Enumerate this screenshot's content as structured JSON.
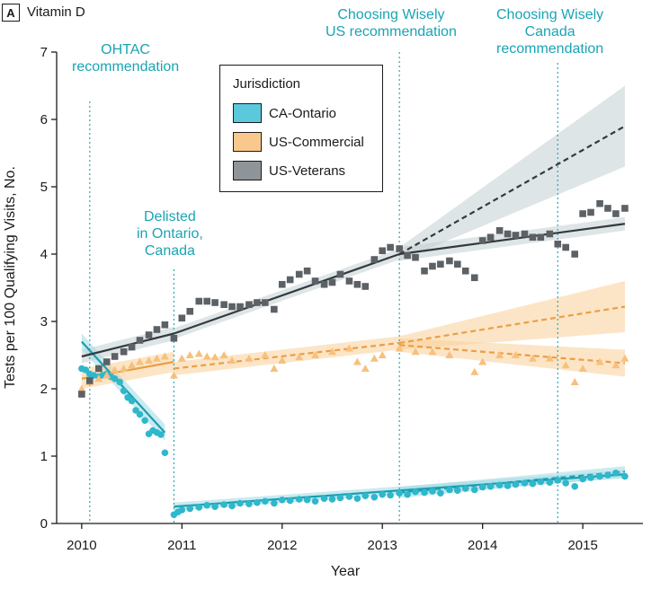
{
  "panel": {
    "letter": "A",
    "title": "Vitamin D"
  },
  "annotations": [
    {
      "id": "ohtac",
      "lines": [
        "OHTAC",
        "recommendation"
      ]
    },
    {
      "id": "delisted",
      "lines": [
        "Delisted",
        "in Ontario,",
        "Canada"
      ]
    },
    {
      "id": "cw-us",
      "lines": [
        "Choosing Wisely",
        "US recommendation"
      ]
    },
    {
      "id": "cw-canada",
      "lines": [
        "Choosing Wisely",
        "Canada",
        "recommendation"
      ]
    }
  ],
  "legend": {
    "title": "Jurisdiction",
    "items": [
      {
        "label": "CA-Ontario",
        "color": "#5bc8dc"
      },
      {
        "label": "US-Commercial",
        "color": "#f9c88c"
      },
      {
        "label": "US-Veterans",
        "color": "#8f9499"
      }
    ]
  },
  "chart_data": {
    "type": "scatter",
    "title": "Vitamin D",
    "xlabel": "Year",
    "ylabel": "Tests per 100 Qualifying Visits, No.",
    "xlim": [
      2009.75,
      2015.6
    ],
    "ylim": [
      0,
      7
    ],
    "xticks": [
      2010,
      2011,
      2012,
      2013,
      2014,
      2015
    ],
    "yticks": [
      0,
      1,
      2,
      3,
      4,
      5,
      6,
      7
    ],
    "vlines": [
      {
        "x": 2010.08,
        "label": "OHTAC recommendation"
      },
      {
        "x": 2010.92,
        "label": "Delisted in Ontario, Canada"
      },
      {
        "x": 2013.17,
        "label": "Choosing Wisely US recommendation"
      },
      {
        "x": 2014.75,
        "label": "Choosing Wisely Canada recommendation"
      }
    ],
    "series": [
      {
        "name": "CA-Ontario",
        "marker": "circle",
        "color": "#2fb7cc",
        "line_color": "#1a9fb0",
        "band_color": "#9fd9e4",
        "points": [
          [
            2010.0,
            2.3
          ],
          [
            2010.04,
            2.28
          ],
          [
            2010.08,
            2.22
          ],
          [
            2010.12,
            2.2
          ],
          [
            2010.17,
            2.18
          ],
          [
            2010.21,
            2.2
          ],
          [
            2010.25,
            2.22
          ],
          [
            2010.29,
            2.18
          ],
          [
            2010.33,
            2.15
          ],
          [
            2010.38,
            2.1
          ],
          [
            2010.42,
            1.97
          ],
          [
            2010.46,
            1.87
          ],
          [
            2010.5,
            1.82
          ],
          [
            2010.54,
            1.68
          ],
          [
            2010.58,
            1.62
          ],
          [
            2010.63,
            1.53
          ],
          [
            2010.67,
            1.33
          ],
          [
            2010.71,
            1.38
          ],
          [
            2010.75,
            1.35
          ],
          [
            2010.79,
            1.32
          ],
          [
            2010.83,
            1.05
          ],
          [
            2010.92,
            0.13
          ],
          [
            2010.96,
            0.17
          ],
          [
            2011.0,
            0.2
          ],
          [
            2011.08,
            0.22
          ],
          [
            2011.17,
            0.24
          ],
          [
            2011.25,
            0.27
          ],
          [
            2011.33,
            0.25
          ],
          [
            2011.42,
            0.28
          ],
          [
            2011.5,
            0.26
          ],
          [
            2011.58,
            0.3
          ],
          [
            2011.67,
            0.29
          ],
          [
            2011.75,
            0.31
          ],
          [
            2011.83,
            0.33
          ],
          [
            2011.92,
            0.3
          ],
          [
            2012.0,
            0.35
          ],
          [
            2012.08,
            0.34
          ],
          [
            2012.17,
            0.36
          ],
          [
            2012.25,
            0.35
          ],
          [
            2012.33,
            0.33
          ],
          [
            2012.42,
            0.37
          ],
          [
            2012.5,
            0.36
          ],
          [
            2012.58,
            0.38
          ],
          [
            2012.67,
            0.4
          ],
          [
            2012.75,
            0.37
          ],
          [
            2012.83,
            0.41
          ],
          [
            2012.92,
            0.39
          ],
          [
            2013.0,
            0.43
          ],
          [
            2013.08,
            0.42
          ],
          [
            2013.17,
            0.45
          ],
          [
            2013.25,
            0.43
          ],
          [
            2013.33,
            0.47
          ],
          [
            2013.42,
            0.46
          ],
          [
            2013.5,
            0.48
          ],
          [
            2013.58,
            0.45
          ],
          [
            2013.67,
            0.5
          ],
          [
            2013.75,
            0.49
          ],
          [
            2013.83,
            0.52
          ],
          [
            2013.92,
            0.5
          ],
          [
            2014.0,
            0.54
          ],
          [
            2014.08,
            0.55
          ],
          [
            2014.17,
            0.57
          ],
          [
            2014.25,
            0.56
          ],
          [
            2014.33,
            0.58
          ],
          [
            2014.42,
            0.6
          ],
          [
            2014.5,
            0.59
          ],
          [
            2014.58,
            0.62
          ],
          [
            2014.67,
            0.61
          ],
          [
            2014.75,
            0.64
          ],
          [
            2014.83,
            0.6
          ],
          [
            2014.92,
            0.55
          ],
          [
            2015.0,
            0.66
          ],
          [
            2015.08,
            0.68
          ],
          [
            2015.17,
            0.7
          ],
          [
            2015.25,
            0.72
          ],
          [
            2015.33,
            0.75
          ],
          [
            2015.42,
            0.7
          ]
        ],
        "fit": [
          {
            "x": [
              2010.0,
              2010.83
            ],
            "y": [
              2.7,
              1.35
            ],
            "ci": 0.12,
            "style": "solid"
          },
          {
            "x": [
              2010.92,
              2015.42
            ],
            "y": [
              0.25,
              0.73
            ],
            "ci": 0.06,
            "style": "solid"
          },
          {
            "x": [
              2013.17,
              2015.42
            ],
            "y": [
              0.46,
              0.77
            ],
            "ci": 0.08,
            "style": "dashed"
          }
        ]
      },
      {
        "name": "US-Commercial",
        "marker": "triangle",
        "color": "#f7c07c",
        "line_color": "#eb9e45",
        "band_color": "#f9cf98",
        "points": [
          [
            2010.0,
            2.0
          ],
          [
            2010.08,
            2.1
          ],
          [
            2010.17,
            2.15
          ],
          [
            2010.25,
            2.2
          ],
          [
            2010.33,
            2.28
          ],
          [
            2010.42,
            2.3
          ],
          [
            2010.5,
            2.35
          ],
          [
            2010.58,
            2.4
          ],
          [
            2010.67,
            2.42
          ],
          [
            2010.75,
            2.45
          ],
          [
            2010.83,
            2.48
          ],
          [
            2010.92,
            2.2
          ],
          [
            2011.0,
            2.45
          ],
          [
            2011.08,
            2.5
          ],
          [
            2011.17,
            2.52
          ],
          [
            2011.25,
            2.48
          ],
          [
            2011.33,
            2.47
          ],
          [
            2011.42,
            2.5
          ],
          [
            2011.5,
            2.42
          ],
          [
            2011.67,
            2.45
          ],
          [
            2011.83,
            2.5
          ],
          [
            2011.92,
            2.3
          ],
          [
            2012.0,
            2.42
          ],
          [
            2012.17,
            2.47
          ],
          [
            2012.33,
            2.5
          ],
          [
            2012.5,
            2.55
          ],
          [
            2012.67,
            2.6
          ],
          [
            2012.75,
            2.4
          ],
          [
            2012.83,
            2.3
          ],
          [
            2012.92,
            2.45
          ],
          [
            2013.0,
            2.5
          ],
          [
            2013.17,
            2.6
          ],
          [
            2013.33,
            2.55
          ],
          [
            2013.5,
            2.55
          ],
          [
            2013.67,
            2.5
          ],
          [
            2013.92,
            2.25
          ],
          [
            2014.0,
            2.4
          ],
          [
            2014.17,
            2.5
          ],
          [
            2014.33,
            2.5
          ],
          [
            2014.5,
            2.45
          ],
          [
            2014.67,
            2.45
          ],
          [
            2014.83,
            2.35
          ],
          [
            2014.92,
            2.1
          ],
          [
            2015.0,
            2.3
          ],
          [
            2015.17,
            2.4
          ],
          [
            2015.33,
            2.35
          ],
          [
            2015.42,
            2.45
          ]
        ],
        "fit": [
          {
            "x": [
              2010.0,
              2010.92
            ],
            "y": [
              2.15,
              2.4
            ],
            "ci": 0.15,
            "style": "solid"
          },
          {
            "x": [
              2010.92,
              2013.17
            ],
            "y": [
              2.3,
              2.68
            ],
            "ci": 0.1,
            "style": "dashed"
          },
          {
            "x": [
              2013.17,
              2015.42
            ],
            "y": [
              2.68,
              3.22
            ],
            "ci": [
              0.1,
              0.38
            ],
            "style": "dashed"
          },
          {
            "x": [
              2013.17,
              2015.42
            ],
            "y": [
              2.65,
              2.38
            ],
            "ci": [
              0.1,
              0.2
            ],
            "style": "dashed"
          }
        ]
      },
      {
        "name": "US-Veterans",
        "marker": "square",
        "color": "#5c6166",
        "line_color": "#33393d",
        "band_color": "#c2cfd2",
        "points": [
          [
            2010.0,
            1.92
          ],
          [
            2010.08,
            2.12
          ],
          [
            2010.17,
            2.3
          ],
          [
            2010.25,
            2.4
          ],
          [
            2010.33,
            2.48
          ],
          [
            2010.42,
            2.55
          ],
          [
            2010.5,
            2.62
          ],
          [
            2010.58,
            2.72
          ],
          [
            2010.67,
            2.8
          ],
          [
            2010.75,
            2.88
          ],
          [
            2010.83,
            2.95
          ],
          [
            2010.92,
            2.75
          ],
          [
            2011.0,
            3.05
          ],
          [
            2011.08,
            3.15
          ],
          [
            2011.17,
            3.3
          ],
          [
            2011.25,
            3.3
          ],
          [
            2011.33,
            3.28
          ],
          [
            2011.42,
            3.25
          ],
          [
            2011.5,
            3.22
          ],
          [
            2011.58,
            3.22
          ],
          [
            2011.67,
            3.25
          ],
          [
            2011.75,
            3.28
          ],
          [
            2011.83,
            3.28
          ],
          [
            2011.92,
            3.18
          ],
          [
            2012.0,
            3.55
          ],
          [
            2012.08,
            3.62
          ],
          [
            2012.17,
            3.7
          ],
          [
            2012.25,
            3.75
          ],
          [
            2012.33,
            3.6
          ],
          [
            2012.42,
            3.55
          ],
          [
            2012.5,
            3.58
          ],
          [
            2012.58,
            3.7
          ],
          [
            2012.67,
            3.6
          ],
          [
            2012.75,
            3.55
          ],
          [
            2012.83,
            3.52
          ],
          [
            2012.92,
            3.92
          ],
          [
            2013.0,
            4.05
          ],
          [
            2013.08,
            4.1
          ],
          [
            2013.17,
            4.08
          ],
          [
            2013.25,
            3.98
          ],
          [
            2013.33,
            3.95
          ],
          [
            2013.42,
            3.75
          ],
          [
            2013.5,
            3.82
          ],
          [
            2013.58,
            3.85
          ],
          [
            2013.67,
            3.9
          ],
          [
            2013.75,
            3.85
          ],
          [
            2013.83,
            3.75
          ],
          [
            2013.92,
            3.65
          ],
          [
            2014.0,
            4.2
          ],
          [
            2014.08,
            4.25
          ],
          [
            2014.17,
            4.35
          ],
          [
            2014.25,
            4.3
          ],
          [
            2014.33,
            4.28
          ],
          [
            2014.42,
            4.3
          ],
          [
            2014.5,
            4.25
          ],
          [
            2014.58,
            4.25
          ],
          [
            2014.67,
            4.3
          ],
          [
            2014.75,
            4.15
          ],
          [
            2014.83,
            4.1
          ],
          [
            2014.92,
            4.0
          ],
          [
            2015.0,
            4.6
          ],
          [
            2015.08,
            4.62
          ],
          [
            2015.17,
            4.75
          ],
          [
            2015.25,
            4.68
          ],
          [
            2015.33,
            4.6
          ],
          [
            2015.42,
            4.68
          ]
        ],
        "fit": [
          {
            "x": [
              2010.0,
              2010.92
            ],
            "y": [
              2.48,
              2.82
            ],
            "ci": 0.1,
            "style": "solid"
          },
          {
            "x": [
              2010.92,
              2013.17
            ],
            "y": [
              2.82,
              4.0
            ],
            "ci": 0.08,
            "style": "solid"
          },
          {
            "x": [
              2013.17,
              2015.42
            ],
            "y": [
              4.0,
              4.45
            ],
            "ci": 0.1,
            "style": "solid"
          },
          {
            "x": [
              2013.17,
              2015.42
            ],
            "y": [
              4.0,
              5.9
            ],
            "ci": [
              0.1,
              0.6
            ],
            "style": "dashed"
          }
        ]
      }
    ]
  }
}
